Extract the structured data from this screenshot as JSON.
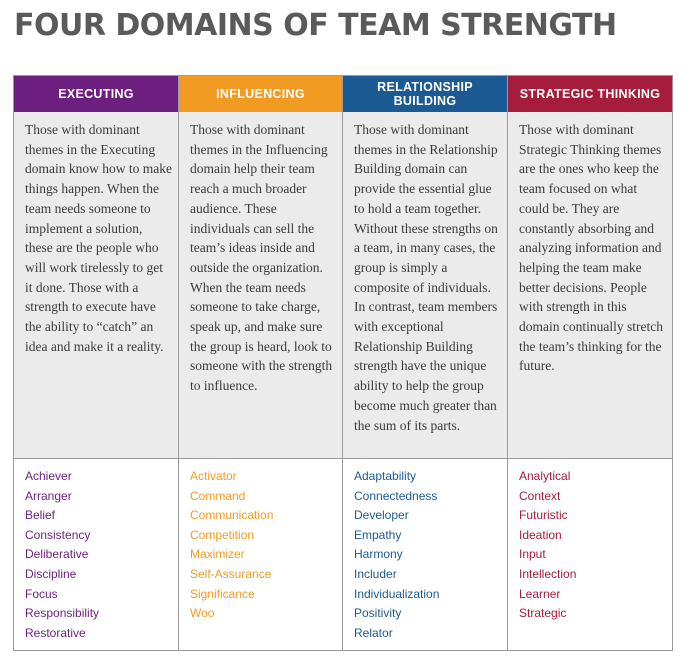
{
  "title": "FOUR DOMAINS OF TEAM STRENGTH",
  "domains": [
    {
      "name": "EXECUTING",
      "color": "#6c1f7f",
      "description": "Those with dominant themes in the Executing domain know how to make things happen. When the team needs someone to implement a solution, these are the people who will work tirelessly to get it done. Those with a strength to execute have the ability to “catch” an idea and make it a reality.",
      "themes": [
        "Achiever",
        "Arranger",
        "Belief",
        "Consistency",
        "Deliberative",
        "Discipline",
        "Focus",
        "Responsibility",
        "Restorative"
      ]
    },
    {
      "name": "INFLUENCING",
      "color": "#f29b22",
      "description": "Those with dominant themes in the Influencing domain help their team reach a much broader audience. These individuals can sell the team’s ideas inside and outside the organization. When the team needs someone to take charge, speak up, and make sure the group is heard, look to someone with the strength to influence.",
      "themes": [
        "Activator",
        "Command",
        "Communication",
        "Competition",
        "Maximizer",
        "Self-Assurance",
        "Significance",
        "Woo"
      ]
    },
    {
      "name": "RELATIONSHIP BUILDING",
      "color": "#1b5a93",
      "description": "Those with dominant themes in the Relationship Building domain can provide the essential glue to hold a team together. Without these strengths on a team, in many cases, the group is simply a composite of individuals. In contrast, team members with exceptional Relationship Building strength have the unique ability to help the group become much greater than the sum of its parts.",
      "themes": [
        "Adaptability",
        "Connectedness",
        "Developer",
        "Empathy",
        "Harmony",
        "Includer",
        "Individualization",
        "Positivity",
        "Relator"
      ]
    },
    {
      "name": "STRATEGIC THINKING",
      "color": "#a51c3c",
      "description": "Those with dominant Strategic Thinking themes are the ones who keep the team focused on what could be. They are constantly absorbing and analyzing information and helping the team make better decisions. People with strength in this domain continually stretch the team’s thinking for the future.",
      "themes": [
        "Analytical",
        "Context",
        "Futuristic",
        "Ideation",
        "Input",
        "Intellection",
        "Learner",
        "Strategic"
      ]
    }
  ]
}
